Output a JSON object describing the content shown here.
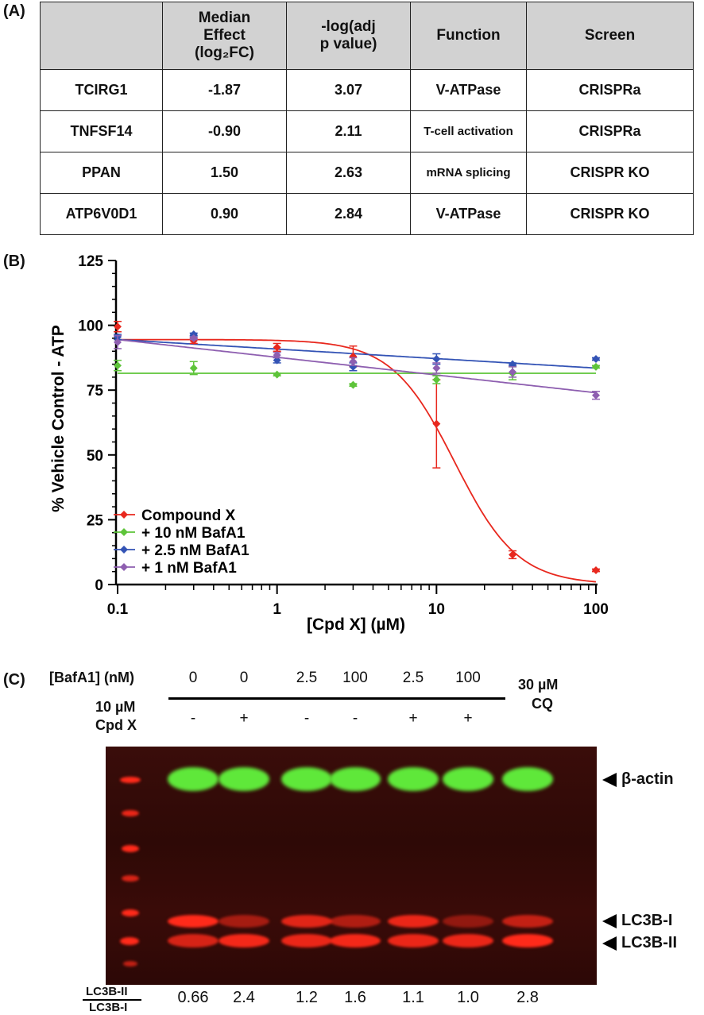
{
  "panelA": {
    "label": "(A)",
    "headers": [
      "",
      "Median Effect (log₂FC)",
      "-log(adj p value)",
      "Function",
      "Screen"
    ],
    "header_lines": {
      "effect": [
        "Median",
        "Effect",
        "(log₂FC)"
      ],
      "pval": [
        "-log(adj",
        "p value)"
      ]
    },
    "rows": [
      {
        "gene": "TCIRG1",
        "effect": "-1.87",
        "pval": "3.07",
        "function": "V-ATPase",
        "screen": "CRISPRa"
      },
      {
        "gene": "TNFSF14",
        "effect": "-0.90",
        "pval": "2.11",
        "function": "T-cell activation",
        "screen": "CRISPRa"
      },
      {
        "gene": "PPAN",
        "effect": "1.50",
        "pval": "2.63",
        "function": "mRNA splicing",
        "screen": "CRISPR KO"
      },
      {
        "gene": "ATP6V0D1",
        "effect": "0.90",
        "pval": "2.84",
        "function": "V-ATPase",
        "screen": "CRISPR KO"
      }
    ]
  },
  "panelB": {
    "label": "(B)",
    "chart_data": {
      "type": "scatter",
      "xlabel": "[Cpd X] (µM)",
      "ylabel": "% Vehicle Control - ATP",
      "xscale": "log",
      "xlim": [
        0.1,
        100
      ],
      "ylim": [
        0,
        125
      ],
      "xticks": [
        "0.1",
        "1",
        "10",
        "100"
      ],
      "yticks": [
        "0",
        "25",
        "50",
        "75",
        "100",
        "125"
      ],
      "legend_position": "bottom-left",
      "series": [
        {
          "name": "Compound X",
          "color": "#e8281e",
          "x": [
            0.1,
            0.3,
            1,
            3,
            10,
            30,
            100
          ],
          "y": [
            99.5,
            94,
            91.5,
            88,
            62,
            11.5,
            5.5
          ],
          "err": [
            2,
            1,
            1.5,
            4,
            17,
            1.5,
            0.5
          ],
          "fit": {
            "top": 94.5,
            "bottom": 0,
            "ic50": 13,
            "hill": 2.2
          }
        },
        {
          "name": "+ 10 nM BafA1",
          "color": "#5ec43a",
          "x": [
            0.1,
            0.3,
            1,
            3,
            10,
            30,
            100
          ],
          "y": [
            84.5,
            83.5,
            81,
            77,
            79,
            81.5,
            84
          ],
          "err": [
            2,
            2.5,
            0.5,
            0.5,
            1.5,
            2.5,
            0.5
          ],
          "fit": {
            "flat": 81.5
          }
        },
        {
          "name": "+ 2.5 nM BafA1",
          "color": "#3353b5",
          "x": [
            0.1,
            0.3,
            1,
            3,
            10,
            30,
            100
          ],
          "y": [
            95.5,
            96.5,
            86.5,
            84,
            87,
            85,
            87
          ],
          "err": [
            1,
            0.5,
            1,
            1.5,
            2,
            0.5,
            0.5
          ],
          "fit": {
            "start": 94.5,
            "end": 83.5
          }
        },
        {
          "name": "+ 1 nM BafA1",
          "color": "#8e5fb0",
          "x": [
            0.1,
            0.3,
            1,
            3,
            10,
            30,
            100
          ],
          "y": [
            93.5,
            95,
            88.5,
            86,
            83.5,
            82,
            73
          ],
          "err": [
            2.5,
            0.5,
            1,
            1.5,
            2,
            2,
            1.5
          ],
          "fit": {
            "start": 94.5,
            "end": 74
          }
        }
      ]
    }
  },
  "panelC": {
    "label": "(C)",
    "bafa1_label": "[BafA1] (nM)",
    "bafa1_values": [
      "0",
      "0",
      "2.5",
      "100",
      "2.5",
      "100"
    ],
    "cpdx_label_line1": "10 µM",
    "cpdx_label_line2": "Cpd X",
    "cpdx_values": [
      "-",
      "+",
      "-",
      "-",
      "+",
      "+"
    ],
    "cq_label_line1": "30 µM",
    "cq_label_line2": "CQ",
    "band_labels": [
      "β-actin",
      "LC3B-I",
      "LC3B-II"
    ],
    "ratio_numerator": "LC3B-II",
    "ratio_denominator": "LC3B-I",
    "ratios": [
      "0.66",
      "2.4",
      "1.2",
      "1.6",
      "1.1",
      "1.0",
      "2.8"
    ],
    "colors": {
      "actin": "#5fe83a",
      "lc3": "#ff2a1a",
      "background": "#330a07"
    }
  }
}
